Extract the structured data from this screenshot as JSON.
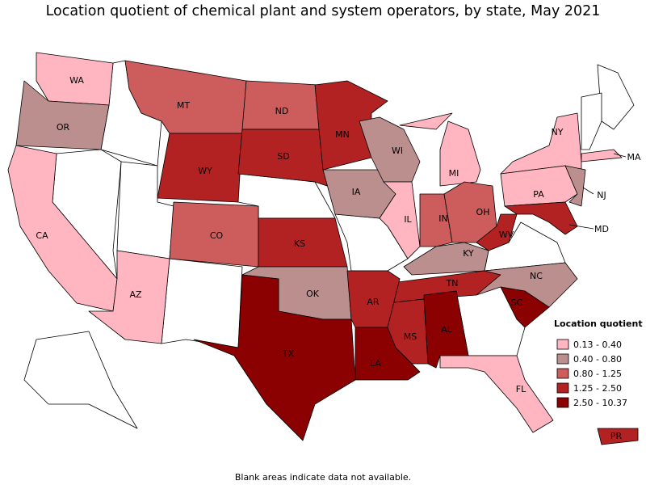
{
  "title": "Location quotient of chemical plant and system operators, by state, May 2021",
  "states": [
    {
      "label": "WA",
      "color": "#ffb6c1"
    },
    {
      "label": "OR",
      "color": "#bc8f8f"
    },
    {
      "label": "CA",
      "color": "#ffb6c1"
    },
    {
      "label": "AZ",
      "color": "#ffb6c1"
    },
    {
      "label": "MT",
      "color": "#cd5c5c"
    },
    {
      "label": "WY",
      "color": "#b22222"
    },
    {
      "label": "CO",
      "color": "#cd5c5c"
    },
    {
      "label": "ND",
      "color": "#cd5c5c"
    },
    {
      "label": "SD",
      "color": "#b22222"
    },
    {
      "label": "KS",
      "color": "#b22222"
    },
    {
      "label": "OK",
      "color": "#bc8f8f"
    },
    {
      "label": "TX",
      "color": "#8b0000"
    },
    {
      "label": "MN",
      "color": "#b22222"
    },
    {
      "label": "IA",
      "color": "#bc8f8f"
    },
    {
      "label": "WI",
      "color": "#bc8f8f"
    },
    {
      "label": "IL",
      "color": "#ffb6c1"
    },
    {
      "label": "MI",
      "color": "#ffb6c1"
    },
    {
      "label": "IN",
      "color": "#cd5c5c"
    },
    {
      "label": "OH",
      "color": "#cd5c5c"
    },
    {
      "label": "KY",
      "color": "#bc8f8f"
    },
    {
      "label": "TN",
      "color": "#b22222"
    },
    {
      "label": "MS",
      "color": "#b22222"
    },
    {
      "label": "AL",
      "color": "#8b0000"
    },
    {
      "label": "LA",
      "color": "#8b0000"
    },
    {
      "label": "AR",
      "color": "#b22222"
    },
    {
      "label": "WV",
      "color": "#b22222"
    },
    {
      "label": "SC",
      "color": "#8b0000"
    },
    {
      "label": "NC",
      "color": "#bc8f8f"
    },
    {
      "label": "FL",
      "color": "#ffb6c1"
    },
    {
      "label": "NY",
      "color": "#ffb6c1"
    },
    {
      "label": "PA",
      "color": "#ffb6c1"
    },
    {
      "label": "NJ",
      "color": "#bc8f8f"
    },
    {
      "label": "MD",
      "color": "#b22222"
    },
    {
      "label": "MA",
      "color": "#ffb6c1"
    },
    {
      "label": "PR",
      "color": "#b22222"
    }
  ],
  "legend": {
    "title": "Location quotient",
    "items": [
      {
        "label": "0.13 - 0.40",
        "color": "#ffb6c1"
      },
      {
        "label": "0.40 - 0.80",
        "color": "#bc8f8f"
      },
      {
        "label": "0.80 - 1.25",
        "color": "#cd5c5c"
      },
      {
        "label": "1.25 - 2.50",
        "color": "#b22222"
      },
      {
        "label": "2.50 - 10.37",
        "color": "#8b0000"
      }
    ]
  },
  "note": "Blank areas indicate data not available."
}
